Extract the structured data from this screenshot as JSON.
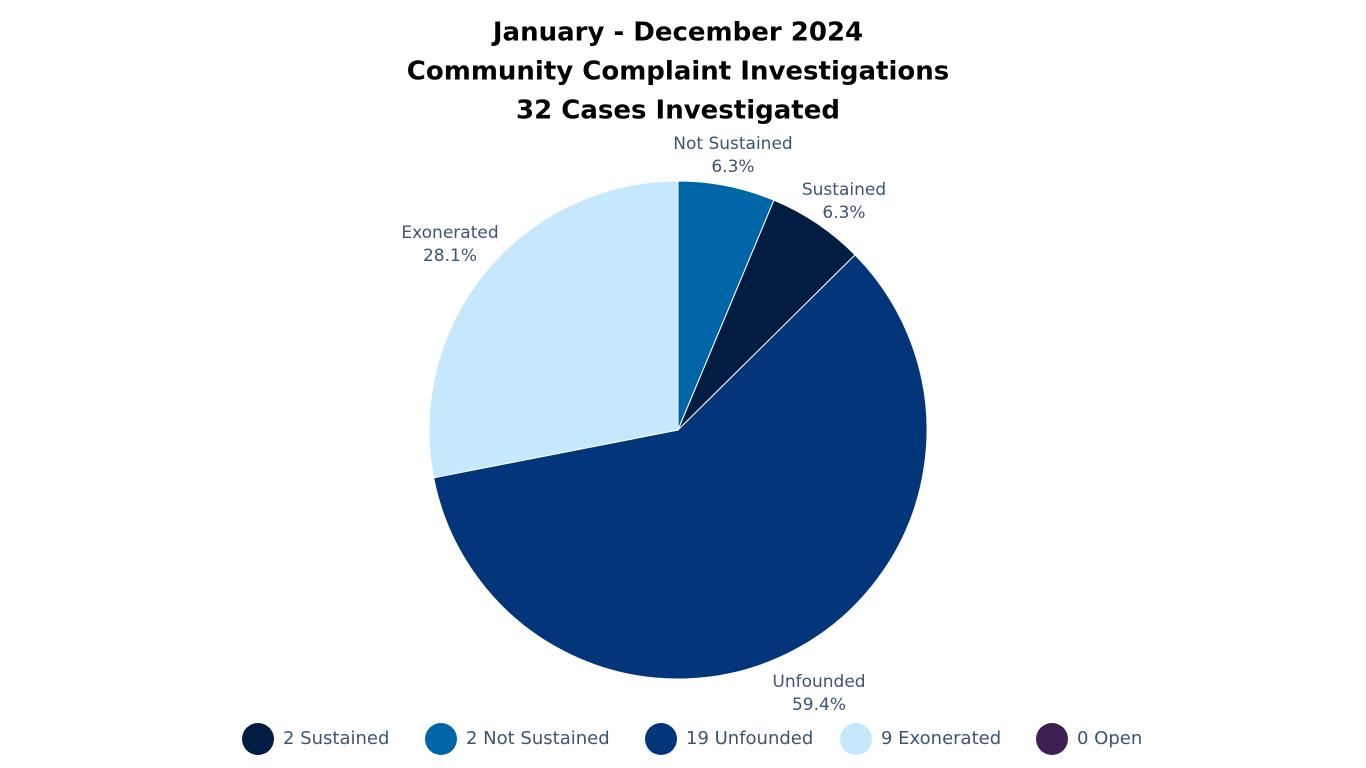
{
  "chart_data": {
    "type": "pie",
    "title": [
      "January - December 2024",
      "Community Complaint Investigations",
      "32 Cases Investigated"
    ],
    "categories": [
      "Not Sustained",
      "Sustained",
      "Unfounded",
      "Exonerated"
    ],
    "values": [
      6.3,
      6.3,
      59.4,
      28.1
    ],
    "value_labels": [
      "6.3%",
      "6.3%",
      "59.4%",
      "28.1%"
    ],
    "colors": [
      "#0066a8",
      "#021c42",
      "#02357a",
      "#c5e8fc"
    ],
    "legend": [
      {
        "label": "2 Sustained",
        "color": "#021c42"
      },
      {
        "label": "2 Not Sustained",
        "color": "#0066a8"
      },
      {
        "label": "19 Unfounded",
        "color": "#02357a"
      },
      {
        "label": "9 Exonerated",
        "color": "#c5e8fc"
      },
      {
        "label": "0 Open",
        "color": "#3e2152"
      }
    ]
  }
}
